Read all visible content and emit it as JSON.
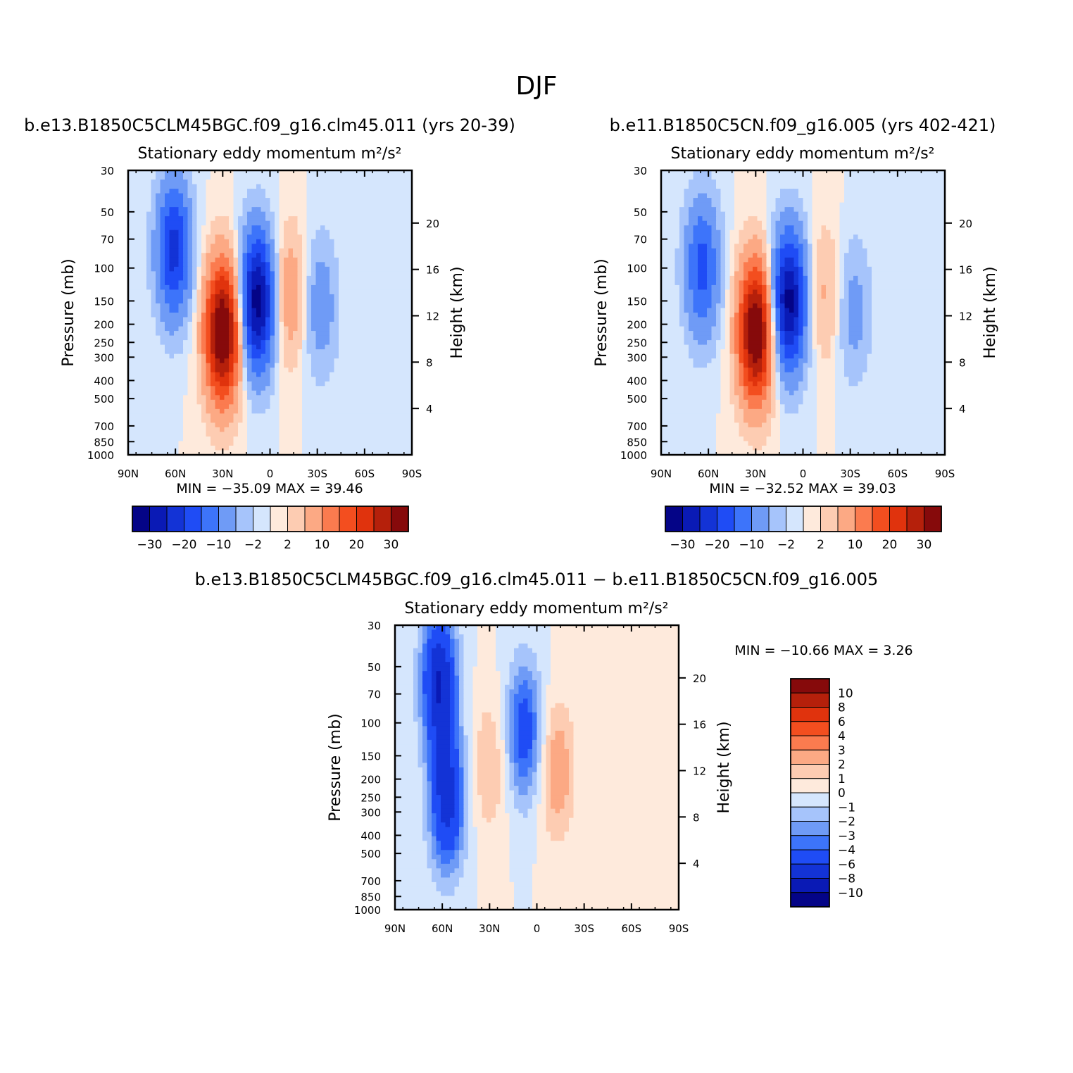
{
  "figure": {
    "title": "DJF"
  },
  "chart_data": [
    {
      "type": "heatmap",
      "case_title": "b.e13.B1850C5CLM45BGC.f09_g16.clm45.011 (yrs 20-39)",
      "subtitle": "Stationary eddy momentum  m²/s²",
      "xlabel": "",
      "ylabel": "Pressure (mb)",
      "ylabel_right": "Height (km)",
      "x_ticks": [
        "90N",
        "60N",
        "30N",
        "0",
        "30S",
        "60S",
        "90S"
      ],
      "y_ticks": [
        "30",
        "50",
        "70",
        "100",
        "150",
        "200",
        "250",
        "300",
        "400",
        "500",
        "700",
        "850",
        "1000"
      ],
      "y_right_ticks": [
        "20",
        "16",
        "12",
        "8",
        "4"
      ],
      "stats_text": "MIN = −35.09   MAX =  39.46",
      "min": -35.09,
      "max": 39.46,
      "colorbar_labels": [
        "−30",
        "−20",
        "−10",
        "−2",
        "2",
        "10",
        "20",
        "30"
      ],
      "features": [
        {
          "lat": 61,
          "p": 80,
          "value": -22
        },
        {
          "lat": 30,
          "p": 220,
          "value": 38
        },
        {
          "lat": 8,
          "p": 150,
          "value": -33
        },
        {
          "lat": -12,
          "p": 140,
          "value": 9
        },
        {
          "lat": -32,
          "p": 160,
          "value": -8
        }
      ]
    },
    {
      "type": "heatmap",
      "case_title": "b.e11.B1850C5CN.f09_g16.005 (yrs 402-421)",
      "subtitle": "Stationary eddy momentum  m²/s²",
      "xlabel": "",
      "ylabel": "Pressure (mb)",
      "ylabel_right": "Height (km)",
      "x_ticks": [
        "90N",
        "60N",
        "30N",
        "0",
        "30S",
        "60S",
        "90S"
      ],
      "y_ticks": [
        "30",
        "50",
        "70",
        "100",
        "150",
        "200",
        "250",
        "300",
        "400",
        "500",
        "700",
        "850",
        "1000"
      ],
      "y_right_ticks": [
        "20",
        "16",
        "12",
        "8",
        "4"
      ],
      "stats_text": "MIN = −32.52   MAX =  39.03",
      "min": -32.52,
      "max": 39.03,
      "colorbar_labels": [
        "−30",
        "−20",
        "−10",
        "−2",
        "2",
        "10",
        "20",
        "30"
      ],
      "features": [
        {
          "lat": 64,
          "p": 100,
          "value": -17
        },
        {
          "lat": 30,
          "p": 220,
          "value": 37
        },
        {
          "lat": 9,
          "p": 150,
          "value": -32
        },
        {
          "lat": -14,
          "p": 140,
          "value": 6
        },
        {
          "lat": -32,
          "p": 170,
          "value": -7
        }
      ]
    },
    {
      "type": "heatmap",
      "case_title": "b.e13.B1850C5CLM45BGC.f09_g16.clm45.011 − b.e11.B1850C5CN.f09_g16.005",
      "subtitle": "Stationary eddy momentum  m²/s²",
      "xlabel": "",
      "ylabel": "Pressure (mb)",
      "ylabel_right": "Height (km)",
      "x_ticks": [
        "90N",
        "60N",
        "30N",
        "0",
        "30S",
        "60S",
        "90S"
      ],
      "y_ticks": [
        "30",
        "50",
        "70",
        "100",
        "150",
        "200",
        "250",
        "300",
        "400",
        "500",
        "700",
        "850",
        "1000"
      ],
      "y_right_ticks": [
        "20",
        "16",
        "12",
        "8",
        "4"
      ],
      "stats_text": "MIN = −10.66   MAX =    3.26",
      "min": -10.66,
      "max": 3.26,
      "colorbar_labels": [
        "10",
        "8",
        "6",
        "4",
        "3",
        "2",
        "1",
        "0",
        "−1",
        "−2",
        "−3",
        "−4",
        "−6",
        "−8",
        "−10"
      ],
      "features": [
        {
          "lat": 62,
          "p": 60,
          "value": -8
        },
        {
          "lat": 57,
          "p": 260,
          "value": -7
        },
        {
          "lat": 8,
          "p": 110,
          "value": -5
        },
        {
          "lat": -13,
          "p": 180,
          "value": 3
        },
        {
          "lat": 30,
          "p": 170,
          "value": 2
        }
      ]
    }
  ],
  "palettes": {
    "main": [
      "#040487",
      "#0a1ab5",
      "#1333d6",
      "#1f4cf5",
      "#3d74fa",
      "#6f9bf6",
      "#a6c4fb",
      "#d5e6fd",
      "#feeadc",
      "#fdccb2",
      "#fca984",
      "#fb7b4f",
      "#f34e1f",
      "#e0330d",
      "#b5200b",
      "#860a0b"
    ],
    "diff": [
      "#040487",
      "#0a1ab5",
      "#1333d6",
      "#1f4cf5",
      "#3d74fa",
      "#6f9bf6",
      "#a6c4fb",
      "#d5e6fd",
      "#feeadc",
      "#fdccb2",
      "#fca984",
      "#fb7b4f",
      "#f34e1f",
      "#e0330d",
      "#b5200b",
      "#860a0b"
    ]
  }
}
